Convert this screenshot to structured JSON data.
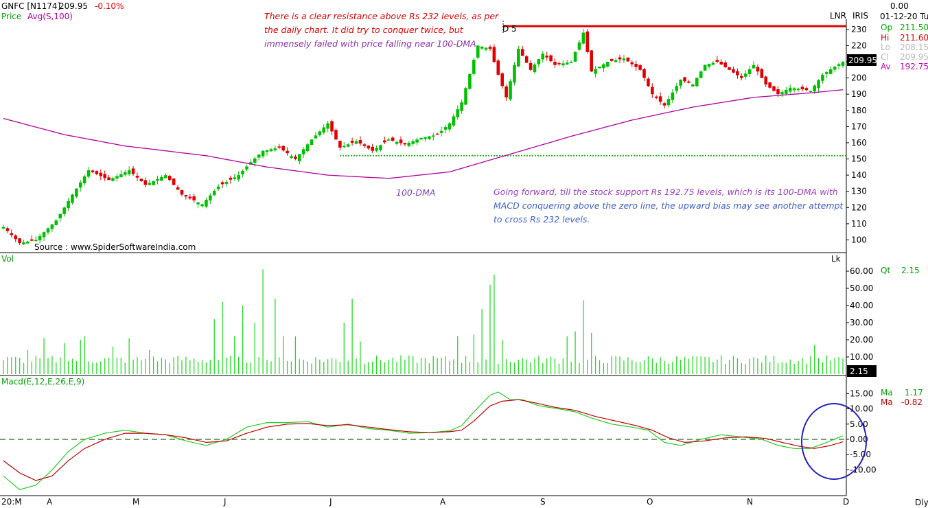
{
  "header": {
    "symbol": "GNFC [N1174]",
    "last": "209.95",
    "change": "-0.10%",
    "study_line": "Price",
    "avg_label": "Avg(S,100)",
    "date": "01-12-20 Tu",
    "top_value": "0.00",
    "lnr_label": "LNR",
    "iris_label": "IRIS"
  },
  "info_panel": [
    {
      "label": "Op",
      "value": "211.50",
      "color": "#00b000"
    },
    {
      "label": "Hi",
      "value": "211.60",
      "color": "#e00000"
    },
    {
      "label": "Lo",
      "value": "208.15",
      "color": "#b8b8b8"
    },
    {
      "label": "Cl",
      "value": "209.95",
      "color": "#b8b8b8"
    },
    {
      "label": "Av",
      "value": "192.75",
      "color": "#cc00aa"
    }
  ],
  "price_badge": "209.95",
  "annotations": {
    "resistance_note": [
      "There is a clear resistance above Rs 232 levels, as per",
      "the daily chart. It did try to conquer twice, but",
      "immensely failed with price falling near 100-DMA."
    ],
    "dma_label": "100-DMA",
    "forward_note": [
      "Going forward, till the stock support Rs 192.75 levels, which is its 100-DMA with",
      "MACD conquering above the zero line, the upward bias may see another attempt",
      "to cross Rs 232 levels."
    ],
    "d5_label": "D 5",
    "source": "Source : www.SpiderSoftwareIndia.com"
  },
  "volume_panel": {
    "title": "Vol",
    "lk_label": "Lk",
    "qt_label": "Qt",
    "qt_value": "2.15",
    "badge": "2.15"
  },
  "macd_panel": {
    "title": "Macd(E,12,E,26,E,9)",
    "ma1_label": "Ma",
    "ma1_value": "1.17",
    "ma2_label": "Ma",
    "ma2_value": "-0.82"
  },
  "footer": {
    "dly_label": "Dly"
  },
  "colors": {
    "up": "#00c000",
    "down": "#e00000",
    "dma": "#b000a0",
    "volume": "#22dd22",
    "macd": "#22cc22",
    "signal": "#bb0000",
    "resistance": "#e00000",
    "support": "#22bb22",
    "circle": "#2020c0",
    "axis": "#000000"
  },
  "chart_data": [
    {
      "type": "candlestick",
      "title": "GNFC [N1174]",
      "y_ticks": [
        100,
        110,
        120,
        130,
        140,
        150,
        160,
        170,
        180,
        190,
        200,
        210,
        220,
        230
      ],
      "x_ticks": [
        "20:M",
        "A",
        "M",
        "J",
        "J",
        "A",
        "S",
        "O",
        "N",
        "D"
      ],
      "ylim": [
        93,
        235
      ],
      "resistance_level": 232,
      "support_level": 152,
      "anchors": [
        {
          "i": 0,
          "c": 108
        },
        {
          "i": 4,
          "c": 98
        },
        {
          "i": 8,
          "c": 100
        },
        {
          "i": 13,
          "c": 112
        },
        {
          "i": 17,
          "c": 128
        },
        {
          "i": 21,
          "c": 143
        },
        {
          "i": 26,
          "c": 137
        },
        {
          "i": 31,
          "c": 143
        },
        {
          "i": 35,
          "c": 134
        },
        {
          "i": 40,
          "c": 140
        },
        {
          "i": 44,
          "c": 128
        },
        {
          "i": 49,
          "c": 122
        },
        {
          "i": 53,
          "c": 133
        },
        {
          "i": 58,
          "c": 140
        },
        {
          "i": 61,
          "c": 148
        },
        {
          "i": 64,
          "c": 155
        },
        {
          "i": 68,
          "c": 157
        },
        {
          "i": 72,
          "c": 150
        },
        {
          "i": 76,
          "c": 162
        },
        {
          "i": 80,
          "c": 172
        },
        {
          "i": 83,
          "c": 157
        },
        {
          "i": 87,
          "c": 161
        },
        {
          "i": 91,
          "c": 155
        },
        {
          "i": 95,
          "c": 162
        },
        {
          "i": 99,
          "c": 159
        },
        {
          "i": 103,
          "c": 163
        },
        {
          "i": 107,
          "c": 165
        },
        {
          "i": 110,
          "c": 172
        },
        {
          "i": 113,
          "c": 185
        },
        {
          "i": 117,
          "c": 220
        },
        {
          "i": 120,
          "c": 218
        },
        {
          "i": 122,
          "c": 202
        },
        {
          "i": 124,
          "c": 188
        },
        {
          "i": 127,
          "c": 218
        },
        {
          "i": 130,
          "c": 205
        },
        {
          "i": 133,
          "c": 215
        },
        {
          "i": 136,
          "c": 208
        },
        {
          "i": 140,
          "c": 210
        },
        {
          "i": 143,
          "c": 228
        },
        {
          "i": 145,
          "c": 204
        },
        {
          "i": 149,
          "c": 210
        },
        {
          "i": 153,
          "c": 212
        },
        {
          "i": 157,
          "c": 205
        },
        {
          "i": 160,
          "c": 190
        },
        {
          "i": 163,
          "c": 183
        },
        {
          "i": 167,
          "c": 199
        },
        {
          "i": 170,
          "c": 196
        },
        {
          "i": 173,
          "c": 208
        },
        {
          "i": 176,
          "c": 210
        },
        {
          "i": 179,
          "c": 205
        },
        {
          "i": 182,
          "c": 200
        },
        {
          "i": 185,
          "c": 208
        },
        {
          "i": 188,
          "c": 196
        },
        {
          "i": 191,
          "c": 190
        },
        {
          "i": 194,
          "c": 194
        },
        {
          "i": 197,
          "c": 193
        },
        {
          "i": 199,
          "c": 192
        },
        {
          "i": 202,
          "c": 202
        },
        {
          "i": 205,
          "c": 207
        },
        {
          "i": 207,
          "c": 209.95
        }
      ],
      "dma_100": [
        {
          "i": 0,
          "v": 175
        },
        {
          "i": 15,
          "v": 165
        },
        {
          "i": 30,
          "v": 158
        },
        {
          "i": 50,
          "v": 152
        },
        {
          "i": 65,
          "v": 145
        },
        {
          "i": 80,
          "v": 140
        },
        {
          "i": 95,
          "v": 138
        },
        {
          "i": 110,
          "v": 142
        },
        {
          "i": 125,
          "v": 153
        },
        {
          "i": 140,
          "v": 164
        },
        {
          "i": 155,
          "v": 174
        },
        {
          "i": 170,
          "v": 182
        },
        {
          "i": 185,
          "v": 188
        },
        {
          "i": 200,
          "v": 191
        },
        {
          "i": 207,
          "v": 192.75
        }
      ]
    },
    {
      "type": "bar",
      "title": "Vol",
      "y_ticks": [
        10.0,
        20.0,
        30.0,
        40.0,
        50.0,
        60.0
      ],
      "ylim": [
        0,
        64
      ],
      "last_value": 2.15,
      "spikes": [
        {
          "i": 6,
          "v": 14
        },
        {
          "i": 10,
          "v": 21
        },
        {
          "i": 15,
          "v": 18
        },
        {
          "i": 19,
          "v": 20
        },
        {
          "i": 19,
          "v": 20
        },
        {
          "i": 20,
          "v": 22
        },
        {
          "i": 27,
          "v": 16
        },
        {
          "i": 31,
          "v": 21
        },
        {
          "i": 36,
          "v": 14
        },
        {
          "i": 52,
          "v": 32
        },
        {
          "i": 54,
          "v": 42
        },
        {
          "i": 57,
          "v": 22
        },
        {
          "i": 59,
          "v": 40
        },
        {
          "i": 62,
          "v": 30
        },
        {
          "i": 64,
          "v": 61
        },
        {
          "i": 67,
          "v": 44
        },
        {
          "i": 69,
          "v": 22
        },
        {
          "i": 72,
          "v": 22
        },
        {
          "i": 84,
          "v": 30
        },
        {
          "i": 86,
          "v": 44
        },
        {
          "i": 88,
          "v": 19
        },
        {
          "i": 112,
          "v": 22
        },
        {
          "i": 116,
          "v": 23
        },
        {
          "i": 118,
          "v": 38
        },
        {
          "i": 120,
          "v": 52
        },
        {
          "i": 121,
          "v": 58
        },
        {
          "i": 123,
          "v": 20
        },
        {
          "i": 139,
          "v": 22
        },
        {
          "i": 141,
          "v": 25
        },
        {
          "i": 143,
          "v": 43
        },
        {
          "i": 145,
          "v": 24
        },
        {
          "i": 200,
          "v": 17
        },
        {
          "i": 206,
          "v": 10
        }
      ],
      "base_volume": 6
    },
    {
      "type": "line",
      "title": "Macd(E,12,E,26,E,9)",
      "y_ticks": [
        15.0,
        10.0,
        5.0,
        0.0,
        -5.0,
        -10.0
      ],
      "ylim": [
        -18,
        18
      ],
      "series": [
        {
          "name": "Ma",
          "color": "#22cc22",
          "points": [
            {
              "i": 0,
              "v": -12
            },
            {
              "i": 4,
              "v": -16.5
            },
            {
              "i": 8,
              "v": -15
            },
            {
              "i": 12,
              "v": -10
            },
            {
              "i": 16,
              "v": -4
            },
            {
              "i": 20,
              "v": 0
            },
            {
              "i": 25,
              "v": 2
            },
            {
              "i": 30,
              "v": 3
            },
            {
              "i": 35,
              "v": 2
            },
            {
              "i": 40,
              "v": 1.5
            },
            {
              "i": 45,
              "v": -0.5
            },
            {
              "i": 50,
              "v": -2
            },
            {
              "i": 55,
              "v": 0
            },
            {
              "i": 60,
              "v": 4
            },
            {
              "i": 65,
              "v": 5.5
            },
            {
              "i": 70,
              "v": 5.5
            },
            {
              "i": 75,
              "v": 5.8
            },
            {
              "i": 80,
              "v": 4
            },
            {
              "i": 85,
              "v": 5
            },
            {
              "i": 90,
              "v": 3.5
            },
            {
              "i": 95,
              "v": 3
            },
            {
              "i": 100,
              "v": 2
            },
            {
              "i": 105,
              "v": 2.2
            },
            {
              "i": 110,
              "v": 2.8
            },
            {
              "i": 113,
              "v": 4.5
            },
            {
              "i": 116,
              "v": 9
            },
            {
              "i": 120,
              "v": 14.5
            },
            {
              "i": 122,
              "v": 15.5
            },
            {
              "i": 125,
              "v": 13
            },
            {
              "i": 128,
              "v": 13
            },
            {
              "i": 132,
              "v": 11
            },
            {
              "i": 137,
              "v": 10
            },
            {
              "i": 141,
              "v": 9
            },
            {
              "i": 145,
              "v": 7
            },
            {
              "i": 150,
              "v": 5
            },
            {
              "i": 155,
              "v": 4
            },
            {
              "i": 159,
              "v": 3
            },
            {
              "i": 163,
              "v": -1
            },
            {
              "i": 167,
              "v": -2
            },
            {
              "i": 172,
              "v": 0
            },
            {
              "i": 177,
              "v": 1.5
            },
            {
              "i": 182,
              "v": 0.8
            },
            {
              "i": 187,
              "v": 0
            },
            {
              "i": 191,
              "v": -2
            },
            {
              "i": 195,
              "v": -3
            },
            {
              "i": 199,
              "v": -3
            },
            {
              "i": 203,
              "v": -1
            },
            {
              "i": 207,
              "v": 1.17
            }
          ]
        },
        {
          "name": "Ma",
          "color": "#bb0000",
          "points": [
            {
              "i": 0,
              "v": -7
            },
            {
              "i": 4,
              "v": -11
            },
            {
              "i": 8,
              "v": -13.5
            },
            {
              "i": 12,
              "v": -12
            },
            {
              "i": 16,
              "v": -7
            },
            {
              "i": 20,
              "v": -3
            },
            {
              "i": 25,
              "v": 0
            },
            {
              "i": 30,
              "v": 2
            },
            {
              "i": 35,
              "v": 2
            },
            {
              "i": 40,
              "v": 1.5
            },
            {
              "i": 45,
              "v": 0.5
            },
            {
              "i": 50,
              "v": -1
            },
            {
              "i": 55,
              "v": -0.5
            },
            {
              "i": 60,
              "v": 2
            },
            {
              "i": 65,
              "v": 4
            },
            {
              "i": 70,
              "v": 5
            },
            {
              "i": 75,
              "v": 5.2
            },
            {
              "i": 80,
              "v": 4.5
            },
            {
              "i": 85,
              "v": 4.8
            },
            {
              "i": 90,
              "v": 4
            },
            {
              "i": 95,
              "v": 3.2
            },
            {
              "i": 100,
              "v": 2.5
            },
            {
              "i": 105,
              "v": 2.2
            },
            {
              "i": 110,
              "v": 2.5
            },
            {
              "i": 113,
              "v": 3
            },
            {
              "i": 116,
              "v": 6
            },
            {
              "i": 120,
              "v": 11
            },
            {
              "i": 123,
              "v": 12.5
            },
            {
              "i": 127,
              "v": 13
            },
            {
              "i": 131,
              "v": 12
            },
            {
              "i": 136,
              "v": 10.5
            },
            {
              "i": 141,
              "v": 9.5
            },
            {
              "i": 146,
              "v": 7.5
            },
            {
              "i": 151,
              "v": 6
            },
            {
              "i": 156,
              "v": 4.5
            },
            {
              "i": 160,
              "v": 3
            },
            {
              "i": 164,
              "v": 0.5
            },
            {
              "i": 168,
              "v": -1
            },
            {
              "i": 173,
              "v": -0.5
            },
            {
              "i": 178,
              "v": 0.5
            },
            {
              "i": 183,
              "v": 0.8
            },
            {
              "i": 188,
              "v": 0.3
            },
            {
              "i": 192,
              "v": -1
            },
            {
              "i": 196,
              "v": -2.2
            },
            {
              "i": 200,
              "v": -3
            },
            {
              "i": 204,
              "v": -2
            },
            {
              "i": 207,
              "v": -0.82
            }
          ]
        }
      ]
    }
  ]
}
